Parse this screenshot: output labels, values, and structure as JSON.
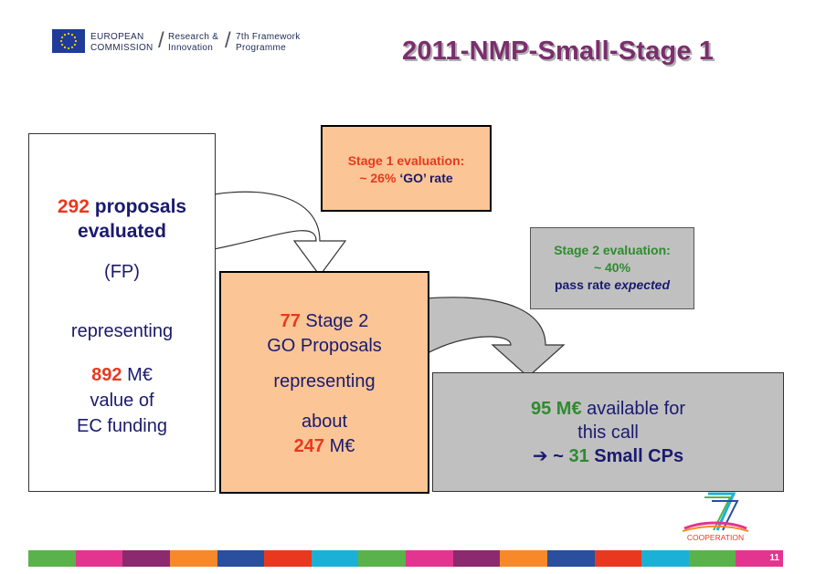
{
  "header": {
    "ec_line1": "EUROPEAN",
    "ec_line2": "COMMISSION",
    "ri_line1": "Research &",
    "ri_line2": "Innovation",
    "fp_line1": "7th Framework",
    "fp_line2": "Programme",
    "title": "2011-NMP-Small-Stage 1"
  },
  "left_box": {
    "count": "292",
    "line1_rest": " proposals",
    "line2": "evaluated",
    "fp": "(FP)",
    "representing": "representing",
    "amount": "892",
    "amount_unit": " M€",
    "value_of": "value of",
    "ec_funding": "EC funding"
  },
  "stage1_box": {
    "line1": "Stage 1 evaluation:",
    "line2_pre": "~ 26% ",
    "line2_post": "‘GO’ rate"
  },
  "middle_box": {
    "count": "77",
    "line1_rest": " Stage 2",
    "line2": "GO Proposals",
    "representing": "representing",
    "about": "about",
    "amount": "247",
    "amount_unit": " M€"
  },
  "stage2_box": {
    "line1": "Stage 2 evaluation:",
    "line2": "~ 40%",
    "line3_pre": "pass rate ",
    "line3_em": "expected"
  },
  "right_box": {
    "amount": "95 M€",
    "line1_rest": " available for",
    "line2": "this call",
    "arrow": "➔ ~ ",
    "cps_count": "31",
    "cps_rest": " Small CPs"
  },
  "footer": {
    "cooperation": "COOPERATION",
    "page_number": "11",
    "strip_colors": [
      "#5ab34a",
      "#e3358f",
      "#8b2a6e",
      "#f7892a",
      "#2a4f9d",
      "#e8391f",
      "#1bb1d6",
      "#5ab34a",
      "#e3358f",
      "#8b2a6e",
      "#f7892a",
      "#2a4f9d",
      "#e8391f",
      "#1bb1d6",
      "#5ab34a",
      "#e3358f"
    ]
  },
  "colors": {
    "accent_red": "#e8391f",
    "accent_green": "#2e8b2e",
    "title_purple": "#7b2e6e",
    "box_orange": "#fbc595",
    "box_grey": "#c0c0c0"
  }
}
